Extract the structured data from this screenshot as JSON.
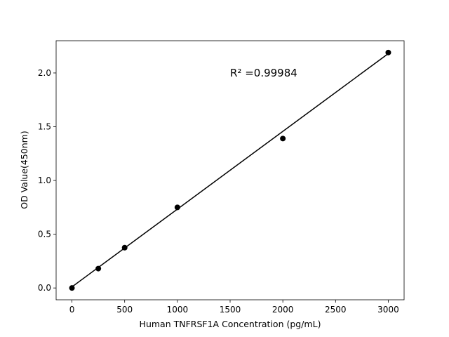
{
  "chart_data": {
    "type": "scatter",
    "x_label": "Human TNFRSF1A Concentration (pg/mL)",
    "y_label": "OD Value(450nm)",
    "series": [
      {
        "name": "Standard",
        "color": "#000000",
        "x": [
          0,
          250,
          500,
          1000,
          2000,
          3000
        ],
        "values": [
          0.0,
          0.18,
          0.375,
          0.75,
          1.39,
          2.19
        ]
      }
    ],
    "fit_line": {
      "color": "#000000",
      "x": [
        0,
        3000
      ],
      "values": [
        0.01,
        2.18
      ]
    },
    "annotation": {
      "text": "R² =0.99984",
      "x": 1500,
      "y": 2.0
    },
    "xlim": [
      -150,
      3150
    ],
    "ylim": [
      -0.11,
      2.3
    ],
    "xticks": [
      0,
      500,
      1000,
      1500,
      2000,
      2500,
      3000
    ],
    "yticks": [
      {
        "value": 0,
        "label": "0.0"
      },
      0.5,
      {
        "value": 1,
        "label": "1.0"
      },
      1.5,
      {
        "value": 2,
        "label": "2.0"
      }
    ]
  }
}
